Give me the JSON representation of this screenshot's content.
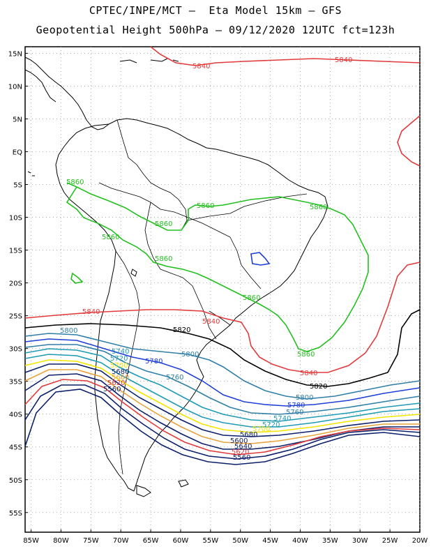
{
  "header": {
    "line1": "CPTEC/INPE/MCT –  Eta Model 15km – GFS",
    "line2": "Geopotential Height 500hPa – 09/12/2020 12UTC fct=123h"
  },
  "map": {
    "lat_labels": [
      "15N",
      "10N",
      "5N",
      "EQ",
      "5S",
      "10S",
      "15S",
      "20S",
      "25S",
      "30S",
      "35S",
      "40S",
      "45S",
      "50S",
      "55S"
    ],
    "lon_labels": [
      "85W",
      "80W",
      "75W",
      "70W",
      "65W",
      "60W",
      "55W",
      "50W",
      "45W",
      "40W",
      "35W",
      "30W",
      "25W",
      "20W"
    ],
    "lon_range": [
      -86,
      -20
    ],
    "lat_range": [
      -58,
      16
    ],
    "grid": "dotted",
    "coastline_color": "#000000",
    "contours": [
      {
        "level": "5560",
        "color": "#0b1f6b",
        "labels": 2
      },
      {
        "level": "5600",
        "color": "#0b1f6b",
        "labels": 0
      },
      {
        "level": "5620",
        "color": "#e23a3a",
        "labels": 2
      },
      {
        "level": "5640",
        "color": "#0b1f6b",
        "labels": 1
      },
      {
        "level": "5660",
        "color": "#e8a33a",
        "labels": 1
      },
      {
        "level": "5680",
        "color": "#0b1f6b",
        "labels": 2
      },
      {
        "level": "5700",
        "color": "#f5e400",
        "labels": 2
      },
      {
        "level": "5720",
        "color": "#1f9bb5",
        "labels": 2
      },
      {
        "level": "5740",
        "color": "#1f9bb5",
        "labels": 2
      },
      {
        "level": "5760",
        "color": "#2f7fa8",
        "labels": 2
      },
      {
        "level": "5780",
        "color": "#1d3fd6",
        "labels": 2
      },
      {
        "level": "5800",
        "color": "#2f7fa8",
        "labels": 3
      },
      {
        "level": "5820",
        "color": "#000000",
        "labels": 2
      },
      {
        "level": "5840",
        "color": "#e23a3a",
        "labels": 5
      },
      {
        "level": "5860",
        "color": "#22c01e",
        "labels": 7
      },
      {
        "level": "5880",
        "color": "#1d3fd6",
        "labels": 0
      }
    ],
    "contour_labels": {
      "5560": "5560",
      "5600": "5600",
      "5620": "5620",
      "5640": "5640",
      "5660": "5660",
      "5680": "5680",
      "5700": "5700",
      "5720": "5720",
      "5740": "5740",
      "5760": "5760",
      "5780": "5780",
      "5800": "5800",
      "5820": "5820",
      "5840": "5840",
      "5860": "5860"
    }
  }
}
